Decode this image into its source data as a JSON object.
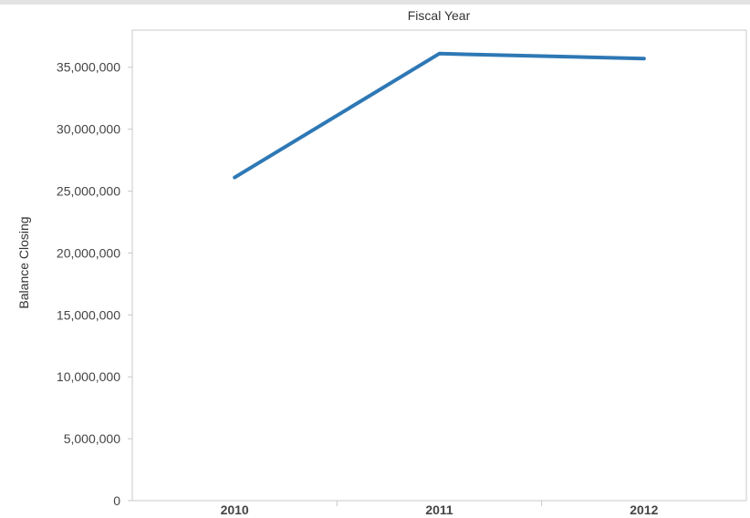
{
  "chart_data": {
    "type": "line",
    "title": "Fiscal Year",
    "xlabel": "",
    "ylabel": "Balance Closing",
    "categories": [
      "2010",
      "2011",
      "2012"
    ],
    "series": [
      {
        "name": "",
        "values": [
          26100000,
          36100000,
          35700000
        ]
      }
    ],
    "ylim": [
      0,
      38000000
    ],
    "yticks": [
      0,
      5000000,
      10000000,
      15000000,
      20000000,
      25000000,
      30000000,
      35000000
    ],
    "ytick_labels": [
      "0",
      "5,000,000",
      "10,000,000",
      "15,000,000",
      "20,000,000",
      "25,000,000",
      "30,000,000",
      "35,000,000"
    ],
    "grid": false,
    "legend": "none",
    "line_color": "#2e78b5",
    "axis_color": "#c8c8c8"
  }
}
